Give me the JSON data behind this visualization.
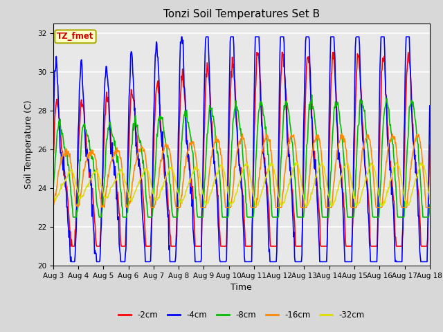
{
  "title": "Tonzi Soil Temperatures Set B",
  "xlabel": "Time",
  "ylabel": "Soil Temperature (C)",
  "ylim": [
    20,
    32.5
  ],
  "yticks": [
    20,
    22,
    24,
    26,
    28,
    30,
    32
  ],
  "x_tick_labels": [
    "Aug 3",
    "Aug 4",
    "Aug 5",
    "Aug 6",
    "Aug 7",
    "Aug 8",
    "Aug 9",
    "Aug 10",
    "Aug 11",
    "Aug 12",
    "Aug 13",
    "Aug 14",
    "Aug 15",
    "Aug 16",
    "Aug 17",
    "Aug 18"
  ],
  "annotation_text": "TZ_fmet",
  "annotation_bg": "#ffffcc",
  "annotation_border": "#aaaa00",
  "annotation_color": "#cc0000",
  "series": [
    {
      "label": "-2cm",
      "color": "#ff0000",
      "linewidth": 1.2
    },
    {
      "label": "-4cm",
      "color": "#0000ff",
      "linewidth": 1.2
    },
    {
      "label": "-8cm",
      "color": "#00bb00",
      "linewidth": 1.2
    },
    {
      "label": "-16cm",
      "color": "#ff8800",
      "linewidth": 1.2
    },
    {
      "label": "-32cm",
      "color": "#dddd00",
      "linewidth": 1.2
    }
  ],
  "background_color": "#e8e8e8",
  "grid_color": "#ffffff",
  "n_points": 720
}
